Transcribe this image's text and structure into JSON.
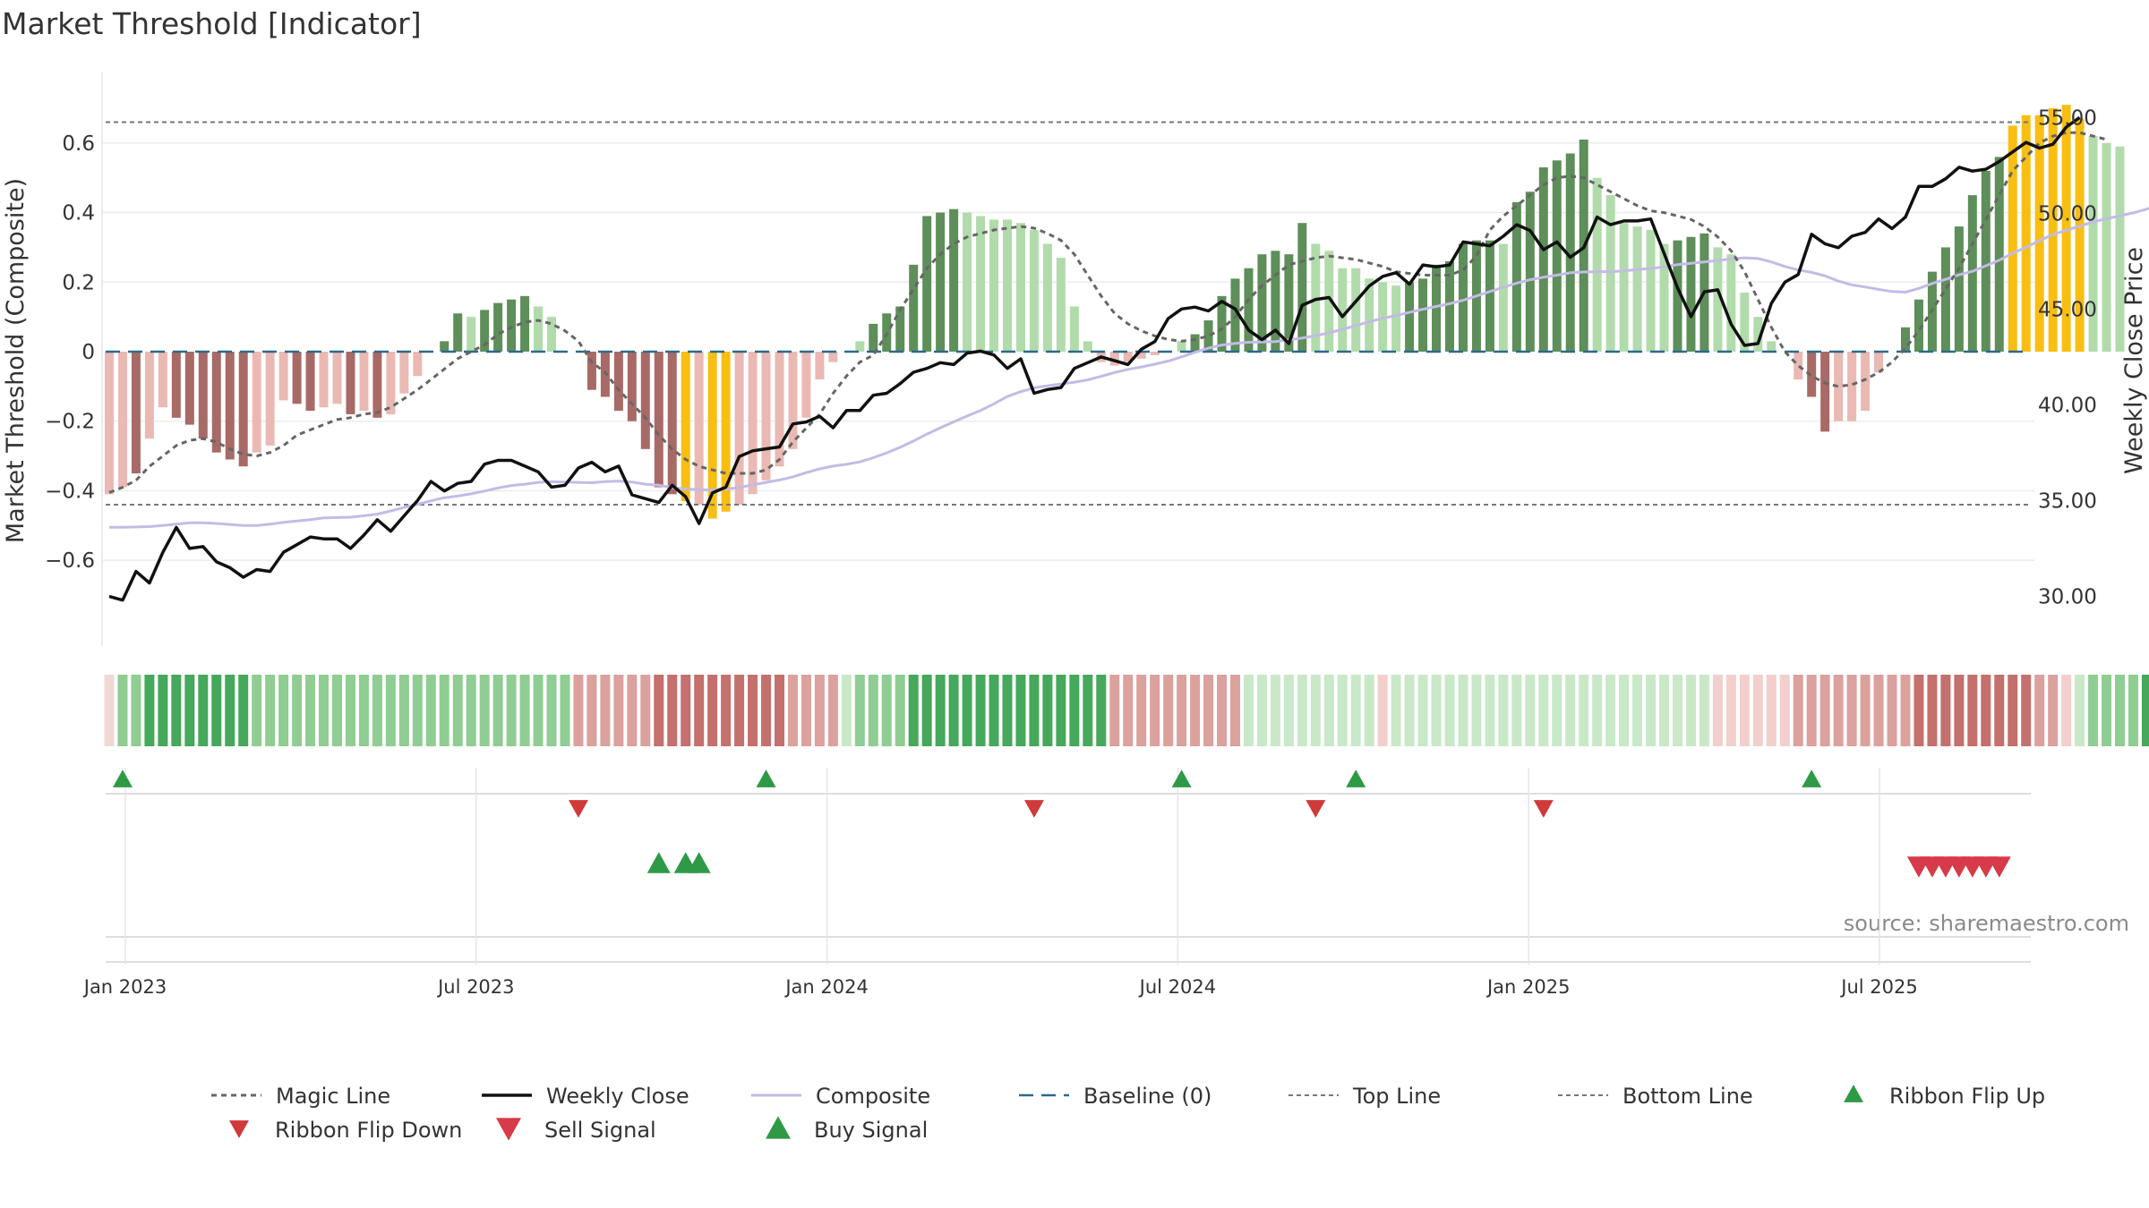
{
  "chart_data": {
    "type": "bar",
    "title": "Market Threshold [Indicator]",
    "source": "source: sharemaestro.com",
    "y_left": {
      "label": "Market Threshold (Composite)",
      "ticks": [
        -0.6,
        -0.4,
        -0.2,
        0,
        0.2,
        0.4,
        0.6
      ],
      "tick_labels": [
        "−0.6",
        "−0.4",
        "−0.2",
        "0",
        "0.2",
        "0.4",
        "0.6"
      ],
      "range": [
        -0.79,
        0.79
      ]
    },
    "y_right": {
      "label": "Weekly Close Price",
      "ticks": [
        30,
        35,
        40,
        45,
        50,
        55
      ],
      "tick_labels": [
        "30.00",
        "35.00",
        "40.00",
        "45.00",
        "50.00",
        "55.00"
      ],
      "range": [
        28.2,
        56.6
      ]
    },
    "x_ticks": [
      "Jan 2023",
      "Jul 2023",
      "Jan 2024",
      "Jul 2024",
      "Jan 2025",
      "Jul 2025"
    ],
    "top_line": 0.66,
    "bottom_line": -0.44,
    "colors": {
      "neg_strong": "#a86a66",
      "neg_weak": "#eab9b3",
      "pos_strong": "#5e8e59",
      "pos_weak": "#b2dbab",
      "extreme": "#f8be12",
      "weekly_close": "#111111",
      "composite": "#c3bbe6",
      "magic_line": "#666666",
      "baseline": "#2b6a8c",
      "threshold_lines": "#777777",
      "buy": "#2e9a45",
      "sell": "#d73a48",
      "flip_down": "#d03a3a"
    },
    "bars": [
      -0.41,
      -0.39,
      -0.35,
      -0.25,
      -0.16,
      -0.19,
      -0.21,
      -0.25,
      -0.29,
      -0.31,
      -0.33,
      -0.29,
      -0.27,
      -0.14,
      -0.15,
      -0.17,
      -0.16,
      -0.15,
      -0.18,
      -0.17,
      -0.19,
      -0.18,
      -0.12,
      -0.07,
      0,
      0.03,
      0.11,
      0.1,
      0.12,
      0.14,
      0.15,
      0.16,
      0.13,
      0.1,
      0,
      0,
      -0.11,
      -0.13,
      -0.17,
      -0.2,
      -0.28,
      -0.39,
      -0.41,
      -0.43,
      -0.44,
      -0.48,
      -0.46,
      -0.44,
      -0.41,
      -0.37,
      -0.33,
      -0.28,
      -0.19,
      -0.08,
      -0.03,
      0,
      0.03,
      0.08,
      0.11,
      0.13,
      0.25,
      0.39,
      0.4,
      0.41,
      0.4,
      0.39,
      0.38,
      0.38,
      0.37,
      0.35,
      0.31,
      0.27,
      0.13,
      0.03,
      -0.03,
      -0.04,
      -0.03,
      -0.02,
      -0.01,
      0,
      0.03,
      0.05,
      0.09,
      0.16,
      0.21,
      0.24,
      0.28,
      0.29,
      0.28,
      0.37,
      0.31,
      0.29,
      0.24,
      0.24,
      0.21,
      0.2,
      0.19,
      0.2,
      0.21,
      0.25,
      0.26,
      0.31,
      0.32,
      0.32,
      0.31,
      0.43,
      0.46,
      0.53,
      0.55,
      0.57,
      0.61,
      0.5,
      0.45,
      0.37,
      0.36,
      0.35,
      0.31,
      0.32,
      0.33,
      0.34,
      0.3,
      0.28,
      0.17,
      0.1,
      0.03,
      0,
      -0.08,
      -0.13,
      -0.23,
      -0.2,
      -0.2,
      -0.17,
      -0.06,
      0,
      0.07,
      0.15,
      0.23,
      0.3,
      0.36,
      0.45,
      0.52,
      0.56,
      0.65,
      0.68,
      0.68,
      0.7,
      0.71,
      0.67,
      0.62,
      0.6,
      0.59
    ],
    "bar_styles": [
      "nw",
      "nw",
      "ns",
      "nw",
      "nw",
      "ns",
      "ns",
      "ns",
      "ns",
      "ns",
      "ns",
      "nw",
      "nw",
      "nw",
      "ns",
      "ns",
      "nw",
      "nw",
      "ns",
      "nw",
      "ns",
      "nw",
      "nw",
      "nw",
      "pw",
      "ps",
      "ps",
      "pw",
      "ps",
      "ps",
      "ps",
      "ps",
      "pw",
      "pw",
      "pw",
      "pw",
      "ns",
      "ns",
      "ns",
      "ns",
      "ns",
      "ns",
      "ns",
      "ex",
      "nw",
      "ex",
      "ex",
      "nw",
      "nw",
      "nw",
      "nw",
      "nw",
      "nw",
      "nw",
      "nw",
      "pw",
      "pw",
      "ps",
      "ps",
      "ps",
      "ps",
      "ps",
      "ps",
      "ps",
      "pw",
      "pw",
      "pw",
      "pw",
      "pw",
      "pw",
      "pw",
      "pw",
      "pw",
      "pw",
      "nw",
      "nw",
      "nw",
      "nw",
      "nw",
      "pw",
      "pw",
      "ps",
      "ps",
      "ps",
      "ps",
      "ps",
      "ps",
      "ps",
      "ps",
      "ps",
      "pw",
      "pw",
      "pw",
      "pw",
      "pw",
      "pw",
      "pw",
      "ps",
      "ps",
      "ps",
      "ps",
      "ps",
      "ps",
      "ps",
      "pw",
      "ps",
      "ps",
      "ps",
      "ps",
      "ps",
      "ps",
      "pw",
      "pw",
      "pw",
      "pw",
      "pw",
      "pw",
      "ps",
      "ps",
      "ps",
      "pw",
      "pw",
      "pw",
      "pw",
      "pw",
      "pw",
      "nw",
      "ns",
      "ns",
      "nw",
      "nw",
      "nw",
      "nw",
      "pw",
      "ps",
      "ps",
      "ps",
      "ps",
      "ps",
      "ps",
      "ps",
      "ps",
      "ex",
      "ex",
      "ex",
      "ex",
      "ex",
      "ex",
      "pw",
      "pw",
      "pw",
      "ps"
    ],
    "weekly_close": [
      30.0,
      29.8,
      31.3,
      30.7,
      32.3,
      33.6,
      32.5,
      32.6,
      31.8,
      31.5,
      31.0,
      31.4,
      31.3,
      32.3,
      32.7,
      33.1,
      33.0,
      33.0,
      32.5,
      33.2,
      34.0,
      33.4,
      34.2,
      35.0,
      36.0,
      35.5,
      35.9,
      36.0,
      36.9,
      37.1,
      37.1,
      36.8,
      36.5,
      35.7,
      35.8,
      36.7,
      37.0,
      36.5,
      36.8,
      35.3,
      35.1,
      34.9,
      35.8,
      35.2,
      33.8,
      35.4,
      35.7,
      37.3,
      37.6,
      37.7,
      37.8,
      39.0,
      39.1,
      39.4,
      38.8,
      39.7,
      39.7,
      40.5,
      40.6,
      41.1,
      41.7,
      41.9,
      42.2,
      42.1,
      42.7,
      42.8,
      42.6,
      41.9,
      42.4,
      40.6,
      40.8,
      40.9,
      41.9,
      42.2,
      42.5,
      42.3,
      42.1,
      42.9,
      43.3,
      44.5,
      45.0,
      45.1,
      44.9,
      45.4,
      45.0,
      43.9,
      43.4,
      43.9,
      43.2,
      45.2,
      45.5,
      45.6,
      44.6,
      45.4,
      46.2,
      46.7,
      46.9,
      46.3,
      47.3,
      47.2,
      47.3,
      48.5,
      48.4,
      48.3,
      48.8,
      49.4,
      49.1,
      48.1,
      48.5,
      47.7,
      48.2,
      49.8,
      49.4,
      49.6,
      49.6,
      49.7,
      47.9,
      46.1,
      44.6,
      45.9,
      46.0,
      44.2,
      43.1,
      43.2,
      45.3,
      46.4,
      46.8,
      48.9,
      48.4,
      48.2,
      48.8,
      49.0,
      49.7,
      49.2,
      49.8,
      51.4,
      51.4,
      51.8,
      52.4,
      52.2,
      52.3,
      52.7,
      53.2,
      53.7,
      53.4,
      53.6,
      54.5,
      55.0
    ],
    "composite": [
      -0.505,
      -0.505,
      -0.504,
      -0.503,
      -0.5,
      -0.496,
      -0.492,
      -0.492,
      -0.494,
      -0.497,
      -0.5,
      -0.5,
      -0.496,
      -0.491,
      -0.487,
      -0.483,
      -0.478,
      -0.477,
      -0.476,
      -0.472,
      -0.467,
      -0.458,
      -0.448,
      -0.439,
      -0.429,
      -0.42,
      -0.415,
      -0.409,
      -0.401,
      -0.392,
      -0.385,
      -0.381,
      -0.376,
      -0.374,
      -0.375,
      -0.376,
      -0.377,
      -0.374,
      -0.372,
      -0.375,
      -0.381,
      -0.384,
      -0.391,
      -0.395,
      -0.397,
      -0.398,
      -0.395,
      -0.391,
      -0.383,
      -0.376,
      -0.369,
      -0.36,
      -0.348,
      -0.337,
      -0.329,
      -0.324,
      -0.317,
      -0.305,
      -0.291,
      -0.275,
      -0.257,
      -0.237,
      -0.219,
      -0.202,
      -0.185,
      -0.169,
      -0.15,
      -0.129,
      -0.115,
      -0.104,
      -0.098,
      -0.093,
      -0.088,
      -0.081,
      -0.071,
      -0.06,
      -0.051,
      -0.044,
      -0.036,
      -0.027,
      -0.015,
      -0.002,
      0.01,
      0.019,
      0.024,
      0.027,
      0.028,
      0.029,
      0.034,
      0.039,
      0.046,
      0.054,
      0.064,
      0.075,
      0.086,
      0.096,
      0.104,
      0.113,
      0.122,
      0.13,
      0.138,
      0.148,
      0.16,
      0.173,
      0.185,
      0.197,
      0.207,
      0.214,
      0.22,
      0.227,
      0.229,
      0.23,
      0.23,
      0.232,
      0.236,
      0.239,
      0.244,
      0.25,
      0.254,
      0.258,
      0.262,
      0.267,
      0.27,
      0.268,
      0.258,
      0.245,
      0.235,
      0.228,
      0.218,
      0.203,
      0.192,
      0.186,
      0.179,
      0.173,
      0.171,
      0.182,
      0.196,
      0.208,
      0.221,
      0.231,
      0.247,
      0.263,
      0.283,
      0.3,
      0.319,
      0.337,
      0.349,
      0.361,
      0.373,
      0.382,
      0.391,
      0.399,
      0.41,
      0.421,
      0.432,
      0.445,
      0.46
    ],
    "magic_line": [
      -0.405,
      -0.39,
      -0.37,
      -0.33,
      -0.3,
      -0.27,
      -0.255,
      -0.25,
      -0.26,
      -0.28,
      -0.295,
      -0.3,
      -0.29,
      -0.27,
      -0.24,
      -0.225,
      -0.21,
      -0.195,
      -0.19,
      -0.18,
      -0.175,
      -0.16,
      -0.135,
      -0.11,
      -0.08,
      -0.05,
      -0.02,
      0.0,
      0.02,
      0.05,
      0.07,
      0.085,
      0.09,
      0.08,
      0.06,
      0.03,
      -0.03,
      -0.06,
      -0.11,
      -0.15,
      -0.19,
      -0.24,
      -0.28,
      -0.31,
      -0.33,
      -0.34,
      -0.35,
      -0.35,
      -0.35,
      -0.34,
      -0.31,
      -0.26,
      -0.22,
      -0.18,
      -0.12,
      -0.07,
      -0.03,
      -0.01,
      0.05,
      0.12,
      0.18,
      0.24,
      0.28,
      0.31,
      0.33,
      0.34,
      0.35,
      0.355,
      0.36,
      0.355,
      0.34,
      0.32,
      0.28,
      0.22,
      0.16,
      0.11,
      0.08,
      0.06,
      0.045,
      0.035,
      0.03,
      0.035,
      0.045,
      0.065,
      0.1,
      0.15,
      0.19,
      0.22,
      0.25,
      0.26,
      0.27,
      0.275,
      0.27,
      0.265,
      0.255,
      0.245,
      0.23,
      0.225,
      0.22,
      0.22,
      0.22,
      0.235,
      0.275,
      0.35,
      0.39,
      0.42,
      0.45,
      0.48,
      0.5,
      0.505,
      0.5,
      0.48,
      0.46,
      0.44,
      0.42,
      0.405,
      0.4,
      0.39,
      0.38,
      0.36,
      0.33,
      0.29,
      0.23,
      0.15,
      0.07,
      0.0,
      -0.04,
      -0.07,
      -0.09,
      -0.1,
      -0.095,
      -0.08,
      -0.06,
      -0.03,
      0.01,
      0.06,
      0.12,
      0.18,
      0.24,
      0.31,
      0.38,
      0.45,
      0.52,
      0.56,
      0.6,
      0.62,
      0.63,
      0.63,
      0.62,
      0.61
    ],
    "ribbon": [
      0,
      2,
      2,
      3,
      3,
      3,
      3,
      3,
      3,
      3,
      3,
      2,
      2,
      2,
      2,
      2,
      2,
      2,
      2,
      2,
      2,
      2,
      2,
      2,
      2,
      2,
      2,
      2,
      2,
      2,
      2,
      2,
      2,
      2,
      2,
      -2,
      -2,
      -2,
      -2,
      -2,
      -2,
      -3,
      -3,
      -3,
      -3,
      -3,
      -3,
      -3,
      -3,
      -3,
      -3,
      -2,
      -2,
      -2,
      -2,
      1,
      2,
      2,
      2,
      2,
      3,
      3,
      3,
      3,
      3,
      3,
      3,
      3,
      3,
      3,
      3,
      3,
      3,
      3,
      3,
      -2,
      -2,
      -2,
      -2,
      -2,
      -2,
      -2,
      -2,
      -2,
      -2,
      1,
      1,
      1,
      1,
      1,
      1,
      1,
      1,
      1,
      1,
      -1,
      1,
      1,
      1,
      1,
      1,
      1,
      1,
      1,
      1,
      1,
      1,
      1,
      1,
      1,
      1,
      1,
      1,
      1,
      1,
      1,
      1,
      1,
      1,
      1,
      -1,
      -1,
      -1,
      -1,
      -1,
      -1,
      -2,
      -2,
      -2,
      -2,
      -2,
      -2,
      -2,
      -2,
      -2,
      -3,
      -3,
      -3,
      -3,
      -3,
      -3,
      -3,
      -3,
      -3,
      -2,
      -2,
      -1,
      1,
      2,
      2,
      2,
      2,
      3,
      3,
      3,
      3,
      3,
      3,
      3,
      3,
      3,
      3,
      2,
      2,
      2
    ],
    "markers": {
      "ribbon_flip_up": [
        1,
        49,
        80,
        93,
        127
      ],
      "ribbon_flip_down": [
        35,
        69,
        90,
        107
      ],
      "buy_signal": [
        41,
        43,
        44
      ],
      "sell_signal": [
        135,
        136,
        137,
        138,
        139,
        140,
        141
      ]
    },
    "legend": [
      {
        "key": "magic",
        "label": "Magic Line"
      },
      {
        "key": "close",
        "label": "Weekly Close"
      },
      {
        "key": "composite",
        "label": "Composite"
      },
      {
        "key": "baseline",
        "label": "Baseline (0)"
      },
      {
        "key": "top",
        "label": "Top Line"
      },
      {
        "key": "bottom",
        "label": "Bottom Line"
      },
      {
        "key": "flipup",
        "label": "Ribbon Flip Up"
      },
      {
        "key": "flipdown",
        "label": "Ribbon Flip Down"
      },
      {
        "key": "sell",
        "label": "Sell Signal"
      },
      {
        "key": "buy",
        "label": "Buy Signal"
      }
    ]
  }
}
